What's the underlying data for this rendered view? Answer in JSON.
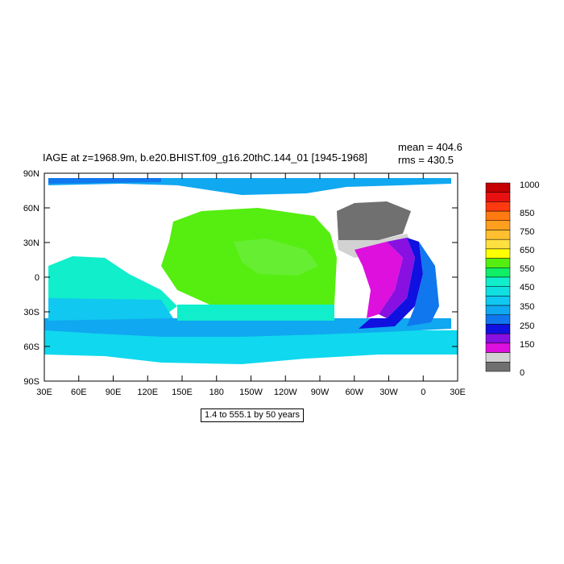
{
  "figure": {
    "title": "IAGE at z=1968.9m, b.e20.BHIST.f09_g16.20thC.144_01 [1945-1968]",
    "stats": {
      "mean": "mean = 404.6",
      "rms": "rms = 430.5"
    },
    "range_note": "1.4 to 555.1 by 50 years"
  },
  "map": {
    "lat_labels": [
      "90N",
      "60N",
      "30N",
      "0",
      "30S",
      "60S",
      "90S"
    ],
    "lon_labels": [
      "30E",
      "60E",
      "90E",
      "120E",
      "150E",
      "180",
      "150W",
      "120W",
      "90W",
      "60W",
      "30W",
      "0",
      "30E"
    ],
    "land_color": "#ffffff"
  },
  "colorbar": {
    "labels": [
      "1000",
      "850",
      "750",
      "650",
      "550",
      "450",
      "350",
      "250",
      "150",
      "0"
    ],
    "colors": [
      "#c40000",
      "#e81010",
      "#ff3a10",
      "#ff7a10",
      "#ff9f20",
      "#ffbf30",
      "#ffe040",
      "#ffff00",
      "#55ee10",
      "#10ee66",
      "#10eecc",
      "#10e0e0",
      "#10c8f0",
      "#10a8f0",
      "#1077ee",
      "#1010e0",
      "#8810e0",
      "#dd10dd",
      "#d2d2d2",
      "#707070"
    ]
  }
}
